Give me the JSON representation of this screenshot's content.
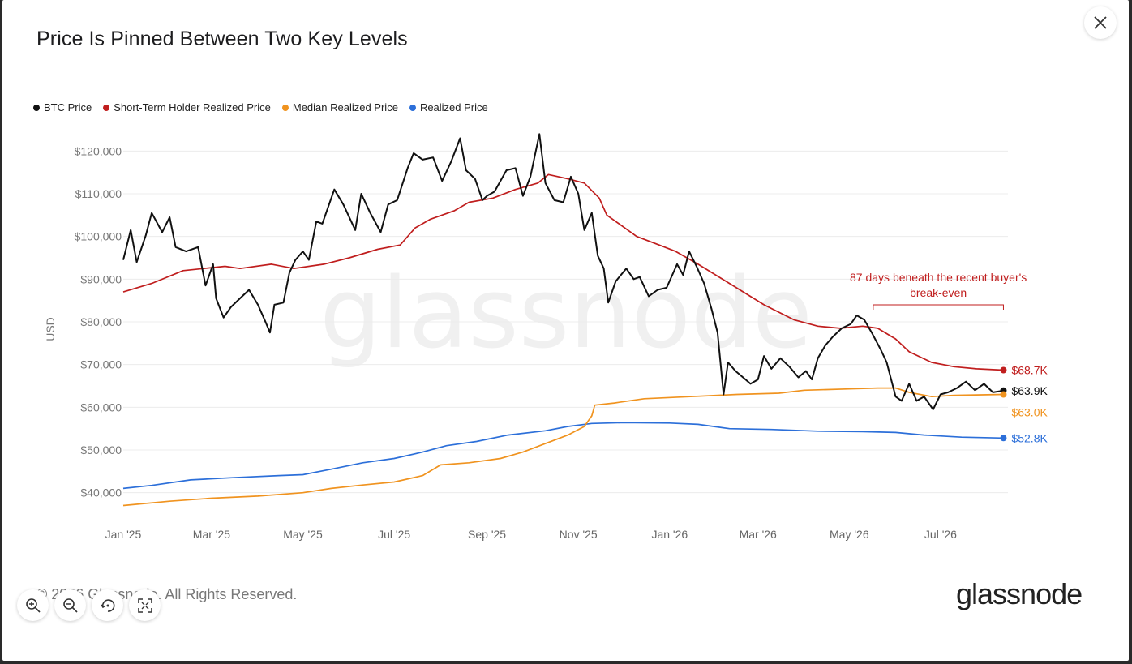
{
  "title": "Price Is Pinned Between Two Key Levels",
  "footer": {
    "copyright": "© 2026 Glassnode. All Rights Reserved.",
    "brand": "glassnode"
  },
  "watermark": "glassnode",
  "toolbar": {
    "zoom_in": "zoom-in-icon",
    "zoom_out": "zoom-out-icon",
    "reset": "reset-zoom-icon",
    "fullscreen": "fullscreen-icon"
  },
  "chart_data": {
    "type": "line",
    "title": "Price Is Pinned Between Two Key Levels",
    "ylabel": "USD",
    "xlabel": "",
    "ylim": [
      35000,
      125000
    ],
    "yticks": [
      40000,
      50000,
      60000,
      70000,
      80000,
      90000,
      100000,
      110000,
      120000
    ],
    "ytick_labels": [
      "$40,000",
      "$50,000",
      "$60,000",
      "$70,000",
      "$80,000",
      "$90,000",
      "$100,000",
      "$110,000",
      "$120,000"
    ],
    "xlim": [
      "2025-01-01",
      "2026-08-15"
    ],
    "xticks": [
      "2025-01-01",
      "2025-03-01",
      "2025-05-01",
      "2025-07-01",
      "2025-09-01",
      "2025-11-01",
      "2026-01-01",
      "2026-03-01",
      "2026-05-01",
      "2026-07-01"
    ],
    "xtick_labels": [
      "Jan '25",
      "Mar '25",
      "May '25",
      "Jul '25",
      "Sep '25",
      "Nov '25",
      "Jan '26",
      "Mar '26",
      "May '26",
      "Jul '26"
    ],
    "grid": true,
    "legend_position": "top-left",
    "series": [
      {
        "name": "BTC Price",
        "color": "#111111",
        "end_label": "$63.9K",
        "points": [
          [
            "2025-01-01",
            94500
          ],
          [
            "2025-01-06",
            101500
          ],
          [
            "2025-01-10",
            94000
          ],
          [
            "2025-01-16",
            100200
          ],
          [
            "2025-01-20",
            105500
          ],
          [
            "2025-01-27",
            101000
          ],
          [
            "2025-02-01",
            104500
          ],
          [
            "2025-02-05",
            97500
          ],
          [
            "2025-02-12",
            96500
          ],
          [
            "2025-02-20",
            97500
          ],
          [
            "2025-02-25",
            88500
          ],
          [
            "2025-03-02",
            93500
          ],
          [
            "2025-03-04",
            85500
          ],
          [
            "2025-03-09",
            81000
          ],
          [
            "2025-03-14",
            83500
          ],
          [
            "2025-03-20",
            85500
          ],
          [
            "2025-03-26",
            87500
          ],
          [
            "2025-04-01",
            84000
          ],
          [
            "2025-04-06",
            80000
          ],
          [
            "2025-04-09",
            77500
          ],
          [
            "2025-04-12",
            84000
          ],
          [
            "2025-04-18",
            84500
          ],
          [
            "2025-04-22",
            91500
          ],
          [
            "2025-04-26",
            94500
          ],
          [
            "2025-05-01",
            96500
          ],
          [
            "2025-05-05",
            94500
          ],
          [
            "2025-05-10",
            103500
          ],
          [
            "2025-05-14",
            103000
          ],
          [
            "2025-05-22",
            111000
          ],
          [
            "2025-05-28",
            107500
          ],
          [
            "2025-06-05",
            101500
          ],
          [
            "2025-06-09",
            110000
          ],
          [
            "2025-06-15",
            105500
          ],
          [
            "2025-06-22",
            101000
          ],
          [
            "2025-06-27",
            107500
          ],
          [
            "2025-07-03",
            108500
          ],
          [
            "2025-07-10",
            116000
          ],
          [
            "2025-07-14",
            119500
          ],
          [
            "2025-07-20",
            118000
          ],
          [
            "2025-07-27",
            118500
          ],
          [
            "2025-08-02",
            113000
          ],
          [
            "2025-08-08",
            117500
          ],
          [
            "2025-08-14",
            123000
          ],
          [
            "2025-08-18",
            115500
          ],
          [
            "2025-08-24",
            113500
          ],
          [
            "2025-08-29",
            108500
          ],
          [
            "2025-09-01",
            109500
          ],
          [
            "2025-09-06",
            110500
          ],
          [
            "2025-09-14",
            115500
          ],
          [
            "2025-09-20",
            116000
          ],
          [
            "2025-09-25",
            109500
          ],
          [
            "2025-09-30",
            114000
          ],
          [
            "2025-10-06",
            124000
          ],
          [
            "2025-10-10",
            112500
          ],
          [
            "2025-10-16",
            108500
          ],
          [
            "2025-10-22",
            108000
          ],
          [
            "2025-10-27",
            114000
          ],
          [
            "2025-11-01",
            110000
          ],
          [
            "2025-11-05",
            101500
          ],
          [
            "2025-11-10",
            105500
          ],
          [
            "2025-11-14",
            95500
          ],
          [
            "2025-11-18",
            92500
          ],
          [
            "2025-11-21",
            84500
          ],
          [
            "2025-11-26",
            89500
          ],
          [
            "2025-12-03",
            92500
          ],
          [
            "2025-12-08",
            90000
          ],
          [
            "2025-12-12",
            90500
          ],
          [
            "2025-12-18",
            86000
          ],
          [
            "2025-12-24",
            87500
          ],
          [
            "2025-12-30",
            88000
          ],
          [
            "2026-01-06",
            93500
          ],
          [
            "2026-01-10",
            91000
          ],
          [
            "2026-01-14",
            96500
          ],
          [
            "2026-01-19",
            93000
          ],
          [
            "2026-01-24",
            89000
          ],
          [
            "2026-01-29",
            83000
          ],
          [
            "2026-02-02",
            77500
          ],
          [
            "2026-02-06",
            63000
          ],
          [
            "2026-02-09",
            70500
          ],
          [
            "2026-02-14",
            68500
          ],
          [
            "2026-02-19",
            67000
          ],
          [
            "2026-02-24",
            65500
          ],
          [
            "2026-03-01",
            66500
          ],
          [
            "2026-03-05",
            72000
          ],
          [
            "2026-03-10",
            69000
          ],
          [
            "2026-03-16",
            71500
          ],
          [
            "2026-03-22",
            69500
          ],
          [
            "2026-03-28",
            67000
          ],
          [
            "2026-04-02",
            68500
          ],
          [
            "2026-04-06",
            66500
          ],
          [
            "2026-04-10",
            71500
          ],
          [
            "2026-04-15",
            74500
          ],
          [
            "2026-04-20",
            76500
          ],
          [
            "2026-04-26",
            78500
          ],
          [
            "2026-05-02",
            79500
          ],
          [
            "2026-05-06",
            81500
          ],
          [
            "2026-05-11",
            80500
          ],
          [
            "2026-05-16",
            77500
          ],
          [
            "2026-05-22",
            73500
          ],
          [
            "2026-05-26",
            70500
          ],
          [
            "2026-06-01",
            62500
          ],
          [
            "2026-06-05",
            61500
          ],
          [
            "2026-06-10",
            65500
          ],
          [
            "2026-06-15",
            61500
          ],
          [
            "2026-06-20",
            62500
          ],
          [
            "2026-06-26",
            59500
          ],
          [
            "2026-07-01",
            63000
          ],
          [
            "2026-07-06",
            63500
          ],
          [
            "2026-07-12",
            64500
          ],
          [
            "2026-07-18",
            66000
          ],
          [
            "2026-07-24",
            64000
          ],
          [
            "2026-07-30",
            65500
          ],
          [
            "2026-08-05",
            63500
          ],
          [
            "2026-08-12",
            63900
          ]
        ]
      },
      {
        "name": "Short-Term Holder Realized Price",
        "color": "#c01e1e",
        "end_label": "$68.7K",
        "points": [
          [
            "2025-01-01",
            87000
          ],
          [
            "2025-01-20",
            89000
          ],
          [
            "2025-02-10",
            92000
          ],
          [
            "2025-03-10",
            93000
          ],
          [
            "2025-03-20",
            92500
          ],
          [
            "2025-04-10",
            93500
          ],
          [
            "2025-04-25",
            92500
          ],
          [
            "2025-05-15",
            93500
          ],
          [
            "2025-06-01",
            95000
          ],
          [
            "2025-06-20",
            97000
          ],
          [
            "2025-07-05",
            98000
          ],
          [
            "2025-07-15",
            102000
          ],
          [
            "2025-07-25",
            104000
          ],
          [
            "2025-08-10",
            106000
          ],
          [
            "2025-08-20",
            108000
          ],
          [
            "2025-09-05",
            109000
          ],
          [
            "2025-09-20",
            111000
          ],
          [
            "2025-10-05",
            112500
          ],
          [
            "2025-10-12",
            114500
          ],
          [
            "2025-10-25",
            113500
          ],
          [
            "2025-11-05",
            112500
          ],
          [
            "2025-11-15",
            109000
          ],
          [
            "2025-11-20",
            105000
          ],
          [
            "2025-12-10",
            100000
          ],
          [
            "2025-12-25",
            98000
          ],
          [
            "2026-01-05",
            96500
          ],
          [
            "2026-01-20",
            93500
          ],
          [
            "2026-02-10",
            89000
          ],
          [
            "2026-03-05",
            84000
          ],
          [
            "2026-03-25",
            80500
          ],
          [
            "2026-04-10",
            79000
          ],
          [
            "2026-04-25",
            78500
          ],
          [
            "2026-05-10",
            79000
          ],
          [
            "2026-05-20",
            78500
          ],
          [
            "2026-06-01",
            76000
          ],
          [
            "2026-06-10",
            73000
          ],
          [
            "2026-06-25",
            70500
          ],
          [
            "2026-07-10",
            69500
          ],
          [
            "2026-07-25",
            69000
          ],
          [
            "2026-08-12",
            68700
          ]
        ]
      },
      {
        "name": "Median Realized Price",
        "color": "#f0931f",
        "end_label": "$63.0K",
        "points": [
          [
            "2025-01-01",
            37000
          ],
          [
            "2025-02-01",
            38000
          ],
          [
            "2025-03-01",
            38700
          ],
          [
            "2025-04-01",
            39200
          ],
          [
            "2025-05-01",
            40000
          ],
          [
            "2025-05-20",
            41000
          ],
          [
            "2025-06-10",
            41800
          ],
          [
            "2025-07-01",
            42500
          ],
          [
            "2025-07-20",
            44000
          ],
          [
            "2025-08-01",
            46500
          ],
          [
            "2025-08-20",
            47000
          ],
          [
            "2025-09-10",
            48000
          ],
          [
            "2025-09-25",
            49500
          ],
          [
            "2025-10-10",
            51500
          ],
          [
            "2025-10-25",
            53500
          ],
          [
            "2025-11-05",
            55500
          ],
          [
            "2025-11-10",
            58000
          ],
          [
            "2025-11-12",
            60500
          ],
          [
            "2025-11-25",
            61000
          ],
          [
            "2025-12-15",
            62000
          ],
          [
            "2026-01-15",
            62500
          ],
          [
            "2026-02-15",
            63000
          ],
          [
            "2026-03-15",
            63300
          ],
          [
            "2026-04-01",
            64000
          ],
          [
            "2026-05-01",
            64300
          ],
          [
            "2026-05-20",
            64500
          ],
          [
            "2026-06-01",
            64500
          ],
          [
            "2026-06-10",
            63500
          ],
          [
            "2026-06-25",
            62500
          ],
          [
            "2026-07-10",
            62800
          ],
          [
            "2026-08-12",
            63000
          ]
        ]
      },
      {
        "name": "Realized Price",
        "color": "#2c6fd9",
        "end_label": "$52.8K",
        "points": [
          [
            "2025-01-01",
            41000
          ],
          [
            "2025-01-20",
            41700
          ],
          [
            "2025-02-15",
            43000
          ],
          [
            "2025-03-15",
            43500
          ],
          [
            "2025-04-15",
            44000
          ],
          [
            "2025-05-01",
            44200
          ],
          [
            "2025-05-20",
            45500
          ],
          [
            "2025-06-10",
            47000
          ],
          [
            "2025-07-01",
            48000
          ],
          [
            "2025-07-20",
            49500
          ],
          [
            "2025-08-05",
            51000
          ],
          [
            "2025-08-25",
            52000
          ],
          [
            "2025-09-15",
            53500
          ],
          [
            "2025-10-10",
            54500
          ],
          [
            "2025-10-25",
            55500
          ],
          [
            "2025-11-10",
            56200
          ],
          [
            "2025-12-01",
            56400
          ],
          [
            "2026-01-01",
            56300
          ],
          [
            "2026-01-20",
            56000
          ],
          [
            "2026-02-10",
            55000
          ],
          [
            "2026-03-10",
            54800
          ],
          [
            "2026-04-10",
            54400
          ],
          [
            "2026-05-10",
            54300
          ],
          [
            "2026-06-01",
            54100
          ],
          [
            "2026-06-20",
            53500
          ],
          [
            "2026-07-15",
            53000
          ],
          [
            "2026-08-12",
            52800
          ]
        ]
      }
    ],
    "annotations": [
      {
        "text_line1": "87 days beneath the recent buyer's",
        "text_line2": "break-even",
        "color": "#c01e1e",
        "x_start": "2026-05-17",
        "x_end": "2026-08-12"
      }
    ]
  }
}
